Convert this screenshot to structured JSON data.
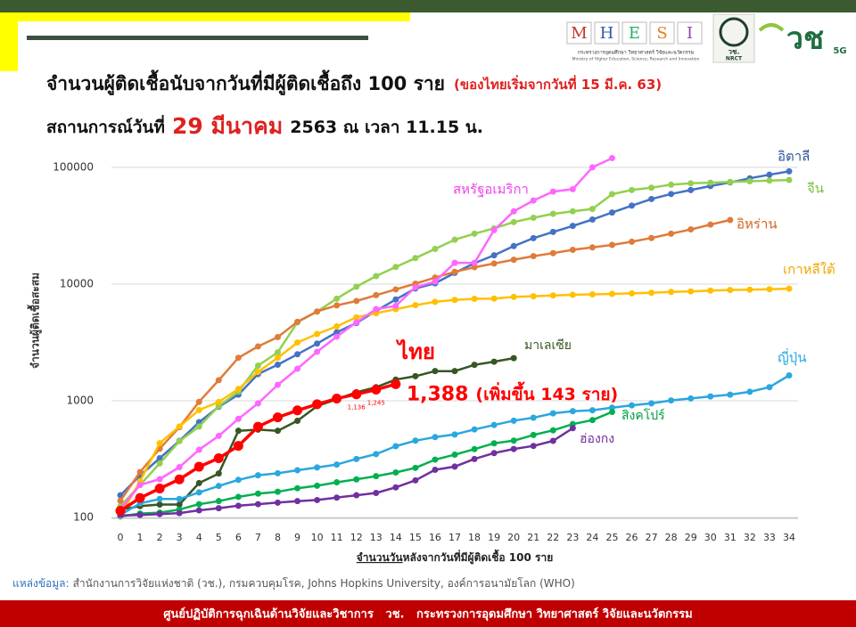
{
  "header": {
    "mhesi_letters": [
      "M",
      "H",
      "E",
      "S",
      "I"
    ],
    "ministry_th": "กระทรวงการอุดมศึกษา วิทยาศาสตร์ วิจัยและนวัตกรรม",
    "ministry_en": "Ministry of Higher Education, Science, Research and Innovation",
    "nrct_th": "วช.",
    "nrct_en": "NRCT",
    "brand": "วช",
    "brand_5g": "5G"
  },
  "chart_data": {
    "type": "line",
    "title": "จำนวนผู้ติดเชื้อนับจากวันที่มีผู้ติดเชื้อถึง 100 ราย",
    "title_note": "(ของไทยเริ่มจากวันที่ 15 มี.ค. 63)",
    "subtitle_prefix": "สถานการณ์วันที่",
    "subtitle_date": "29 มีนาคม",
    "subtitle_suffix": "2563 ณ เวลา 11.15 น.",
    "y_label": "จำนวนผู้ติดเชื้อสะสม",
    "x_label_lead": "จำนวนวัน",
    "x_label_rest": "หลังจากวันที่มีผู้ติดเชื้อ 100 ราย",
    "annotation": "(เพิ่มขึ้น 143 ราย)",
    "log_scale": true,
    "grid": true,
    "x": [
      0,
      1,
      2,
      3,
      4,
      5,
      6,
      7,
      8,
      9,
      10,
      11,
      12,
      13,
      14,
      15,
      16,
      17,
      18,
      19,
      20,
      21,
      22,
      23,
      24,
      25,
      26,
      27,
      28,
      29,
      30,
      31,
      32,
      33,
      34
    ],
    "xlim": [
      0,
      34
    ],
    "xticks": [
      0,
      1,
      2,
      3,
      4,
      5,
      6,
      7,
      8,
      9,
      10,
      11,
      12,
      13,
      14,
      15,
      16,
      17,
      18,
      19,
      20,
      21,
      22,
      23,
      24,
      25,
      26,
      27,
      28,
      29,
      30,
      31,
      32,
      33,
      34
    ],
    "ylim": [
      100,
      130000
    ],
    "yticks": [
      100,
      1000,
      10000,
      100000
    ],
    "series": [
      {
        "name": "อิตาลี",
        "color": "#4472c4",
        "label_color": "#2f5597",
        "values": [
          155,
          229,
          322,
          453,
          655,
          888,
          1128,
          1694,
          2036,
          2502,
          3089,
          3858,
          4636,
          5883,
          7375,
          9172,
          10149,
          12462,
          15113,
          17660,
          21157,
          24747,
          27980,
          31506,
          35713,
          41035,
          47021,
          53578,
          59138,
          63927,
          69176,
          74386,
          80589,
          86498,
          92472
        ]
      },
      {
        "name": "จีน",
        "color": "#92d050",
        "label_color": "#7ac142",
        "values": [
          125,
          190,
          290,
          450,
          600,
          900,
          1200,
          2000,
          2600,
          4700,
          5800,
          7500,
          9500,
          11700,
          14000,
          16700,
          20000,
          24000,
          27000,
          30000,
          34000,
          37000,
          40000,
          42000,
          44000,
          59000,
          64000,
          67000,
          71000,
          73000,
          74000,
          75000,
          76000,
          77000,
          78000
        ]
      },
      {
        "name": "อิหร่าน",
        "color": "#e07b39",
        "label_color": "#d0661f",
        "values": [
          139,
          245,
          388,
          593,
          978,
          1501,
          2336,
          2922,
          3513,
          4747,
          5823,
          6566,
          7161,
          8042,
          9000,
          10075,
          11364,
          12729,
          13938,
          14991,
          16169,
          17361,
          18407,
          19644,
          20610,
          21638,
          23049,
          24811,
          27017,
          29406,
          32332,
          35408,
          null,
          null,
          null
        ]
      },
      {
        "name": "เกาหลีใต้",
        "color": "#ffc000",
        "label_color": "#f0a800",
        "values": [
          104,
          204,
          433,
          602,
          833,
          977,
          1261,
          1766,
          2337,
          3150,
          3736,
          4335,
          5186,
          5621,
          6088,
          6593,
          7041,
          7314,
          7478,
          7513,
          7755,
          7869,
          7979,
          8086,
          8162,
          8236,
          8320,
          8413,
          8565,
          8652,
          8799,
          8897,
          8961,
          9037,
          9137
        ]
      },
      {
        "name": "สหรัฐอเมริกา",
        "color": "#ff66ff",
        "label_color": "#ee44ee",
        "values": [
          118,
          190,
          213,
          270,
          380,
          500,
          700,
          950,
          1370,
          1880,
          2630,
          3540,
          4700,
          6100,
          6500,
          9400,
          10500,
          15200,
          15200,
          29000,
          42000,
          52000,
          62000,
          65000,
          100000,
          120000,
          null,
          null,
          null,
          null,
          null,
          null,
          null,
          null,
          null
        ]
      },
      {
        "name": "มาเลเซีย",
        "color": "#375623",
        "label_color": "#375623",
        "values": [
          117,
          125,
          129,
          129,
          197,
          238,
          553,
          566,
          553,
          673,
          900,
          1030,
          1183,
          1306,
          1518,
          1624,
          1796,
          1796,
          2031,
          2161,
          2320,
          null,
          null,
          null,
          null,
          null,
          null,
          null,
          null,
          null,
          null,
          null,
          null,
          null,
          null
        ]
      },
      {
        "name": "ญี่ปุ่น",
        "color": "#2aa7df",
        "label_color": "#2aa7df",
        "values": [
          105,
          132,
          144,
          144,
          164,
          186,
          210,
          230,
          239,
          254,
          268,
          284,
          317,
          349,
          408,
          455,
          488,
          514,
          568,
          620,
          675,
          716,
          780,
          814,
          829,
          873,
          914,
          950,
          1007,
          1046,
          1089,
          1128,
          1193,
          1307,
          1650
        ]
      },
      {
        "name": "สิงคโปร์",
        "color": "#00b050",
        "label_color": "#00a040",
        "values": [
          102,
          108,
          110,
          117,
          130,
          138,
          150,
          160,
          166,
          178,
          187,
          200,
          212,
          226,
          243,
          266,
          313,
          345,
          385,
          432,
          455,
          509,
          558,
          631,
          683,
          802,
          null,
          null,
          null,
          null,
          null,
          null,
          null,
          null,
          null
        ]
      },
      {
        "name": "ฮ่องกง",
        "color": "#7030a0",
        "label_color": "#7030a0",
        "values": [
          104,
          105,
          107,
          109,
          115,
          120,
          126,
          130,
          134,
          138,
          141,
          148,
          155,
          162,
          181,
          208,
          256,
          273,
          317,
          356,
          386,
          410,
          453,
          582,
          null,
          null,
          null,
          null,
          null,
          null,
          null,
          null,
          null,
          null,
          null
        ]
      },
      {
        "name": "ไทย",
        "color": "#ff0000",
        "label_color": "#ff0000",
        "values": [
          114,
          147,
          177,
          212,
          272,
          322,
          411,
          599,
          721,
          827,
          934,
          1045,
          1136,
          1245,
          1388,
          null,
          null,
          null,
          null,
          null,
          null,
          null,
          null,
          null,
          null,
          null,
          null,
          null,
          null,
          null,
          null,
          null,
          null,
          null,
          null
        ],
        "value_labels": [
          null,
          null,
          null,
          null,
          null,
          null,
          null,
          null,
          null,
          null,
          null,
          null,
          "1,136",
          "1,245",
          "1,388",
          null,
          null,
          null,
          null,
          null,
          null,
          null,
          null,
          null,
          null,
          null,
          null,
          null,
          null,
          null,
          null,
          null,
          null,
          null,
          null
        ]
      }
    ]
  },
  "source": {
    "label": "แหล่งข้อมูล:",
    "text": "สำนักงานการวิจัยแห่งชาติ (วช.), กรมควบคุมโรค, Johns Hopkins University, องค์การอนามัยโลก (WHO)"
  },
  "footer": {
    "text": "ศูนย์ปฏิบัติการฉุกเฉินด้านวิจัยและวิชาการ   วช.   กระทรวงการอุดมศึกษา วิทยาศาสตร์ วิจัยและนวัตกรรม"
  }
}
